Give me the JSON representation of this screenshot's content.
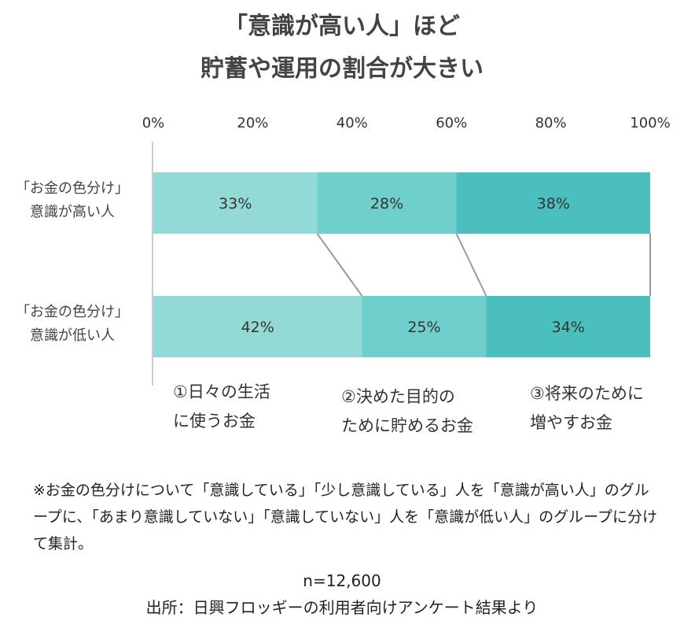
{
  "title_line1": "「意識が高い人」ほど",
  "title_line2": "貯蓄や運用の割合が大きい",
  "chart_data": {
    "type": "bar",
    "orientation": "horizontal",
    "stacked": true,
    "xlim": [
      0,
      100
    ],
    "x_ticks": [
      "0%",
      "20%",
      "40%",
      "60%",
      "80%",
      "100%"
    ],
    "categories": [
      [
        "「お金の色分け」",
        "意識が高い人"
      ],
      [
        "「お金の色分け」",
        "意識が低い人"
      ]
    ],
    "series": [
      {
        "name": "①日々の生活に使うお金",
        "values": [
          33,
          42
        ],
        "labels": [
          "33%",
          "42%"
        ],
        "color": "#93dad7"
      },
      {
        "name": "②決めた目的のために貯めるお金",
        "values": [
          28,
          25
        ],
        "labels": [
          "28%",
          "25%"
        ],
        "color": "#6fcfcd"
      },
      {
        "name": "③将来のために増やすお金",
        "values": [
          38,
          34
        ],
        "labels": [
          "38%",
          "34%"
        ],
        "color": "#4bbfbe"
      }
    ],
    "legend": [
      [
        "①日々の生活",
        "に使うお金"
      ],
      [
        "②決めた目的の",
        "ために貯めるお金"
      ],
      [
        "③将来のために",
        "増やすお金"
      ]
    ]
  },
  "note": "※お金の色分けについて「意識している」「少し意識している」人を「意識が高い人」のグループに、「あまり意識していない」「意識していない」人を「意識が低い人」のグループに分けて集計。",
  "sample_size": "n=12,600",
  "source": "出所：日興フロッギーの利用者向けアンケート結果より"
}
